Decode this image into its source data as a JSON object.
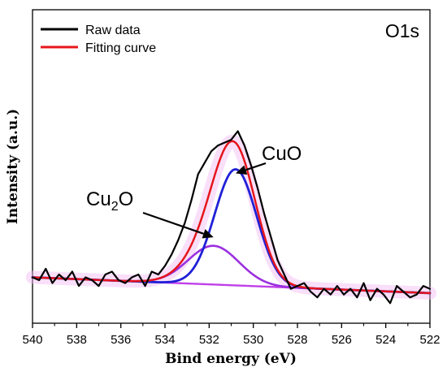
{
  "chart_data": {
    "type": "line",
    "panel_label": "O1s",
    "xlabel": "Bind energy (eV)",
    "ylabel": "Intensity (a.u.)",
    "xlim": [
      540,
      522
    ],
    "x_reversed": true,
    "ylim": [
      0,
      1
    ],
    "y_ticks_labeled": false,
    "x_ticks": [
      540,
      538,
      536,
      534,
      532,
      530,
      528,
      526,
      524,
      522
    ],
    "grid": false,
    "legend": {
      "position": "top-left",
      "entries": [
        {
          "label": "Raw data",
          "color": "#000000"
        },
        {
          "label": "Fitting curve",
          "color": "#e8141c"
        }
      ]
    },
    "colors": {
      "raw": "#000000",
      "fit": "#e8141c",
      "cuo": "#2020d8",
      "cu2o": "#9b30e0",
      "baseline": "#c040e8",
      "glow": "#f2b8f2",
      "envelope": "#8a5a1a"
    },
    "annotations": [
      {
        "label": "CuO",
        "points_to": {
          "x": 530.8,
          "y": 0.52
        }
      },
      {
        "label": "Cu",
        "subscript": "2",
        "suffix": "O",
        "points_to": {
          "x": 531.8,
          "y": 0.3
        }
      }
    ],
    "baseline": {
      "y_at_540": 0.16,
      "y_at_522": 0.105
    },
    "series": [
      {
        "id": "cuo",
        "name": "CuO",
        "center": 530.8,
        "sigma": 0.95,
        "amplitude": 0.405
      },
      {
        "id": "cu2o",
        "name": "Cu2O",
        "center": 531.8,
        "sigma": 1.15,
        "amplitude": 0.135
      },
      {
        "id": "raw",
        "name": "Raw data",
        "x": [
          540,
          539.7,
          539.4,
          539.1,
          538.8,
          538.5,
          538.2,
          537.9,
          537.6,
          537.3,
          537,
          536.7,
          536.4,
          536.1,
          535.8,
          535.5,
          535.2,
          534.9,
          534.6,
          534.3,
          534,
          533.7,
          533.4,
          533.1,
          532.8,
          532.5,
          532.2,
          531.9,
          531.6,
          531.3,
          531,
          530.7,
          530.4,
          530.1,
          529.8,
          529.5,
          529.2,
          528.9,
          528.6,
          528.3,
          528,
          527.7,
          527.4,
          527.1,
          526.8,
          526.5,
          526.2,
          525.9,
          525.6,
          525.3,
          525,
          524.7,
          524.4,
          524.1,
          523.8,
          523.5,
          523.2,
          522.9,
          522.6,
          522.3,
          522
        ],
        "y": [
          0.16,
          0.15,
          0.19,
          0.14,
          0.17,
          0.15,
          0.18,
          0.13,
          0.16,
          0.15,
          0.13,
          0.17,
          0.18,
          0.15,
          0.14,
          0.16,
          0.17,
          0.13,
          0.18,
          0.17,
          0.2,
          0.24,
          0.29,
          0.35,
          0.43,
          0.52,
          0.56,
          0.6,
          0.62,
          0.63,
          0.64,
          0.67,
          0.62,
          0.55,
          0.47,
          0.38,
          0.3,
          0.22,
          0.17,
          0.12,
          0.13,
          0.14,
          0.11,
          0.09,
          0.12,
          0.1,
          0.13,
          0.1,
          0.12,
          0.09,
          0.14,
          0.08,
          0.12,
          0.1,
          0.07,
          0.13,
          0.11,
          0.09,
          0.1,
          0.13,
          0.12
        ]
      },
      {
        "id": "fit",
        "name": "Fitting curve",
        "note_fit": "sum of CuO + Cu2O + baseline"
      }
    ]
  }
}
